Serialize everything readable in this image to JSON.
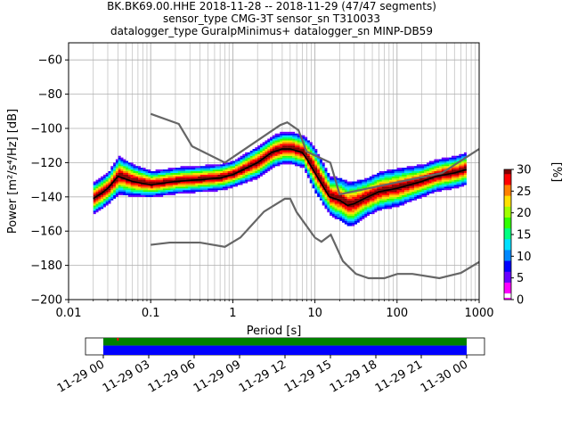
{
  "title": {
    "line1": "BK.BK69.00.HHE   2018-11-28 -- 2018-11-29  (47/47 segments)",
    "line2": "sensor_type CMG-3T sensor_sn T310033",
    "line3": "datalogger_type GuralpMinimus+ datalogger_sn MINP-DB59"
  },
  "chart_data": {
    "type": "heatmap",
    "xlabel": "Period [s]",
    "ylabel": "Power [m²/s⁴/Hz] [dB]",
    "xscale": "log",
    "xlim": [
      0.01,
      1000
    ],
    "ylim": [
      -200,
      -50
    ],
    "x_ticks": [
      0.01,
      0.1,
      1,
      10,
      100,
      1000
    ],
    "x_tick_labels": [
      "0.01",
      "0.1",
      "1",
      "10",
      "100",
      "1000"
    ],
    "y_ticks": [
      -60,
      -80,
      -100,
      -120,
      -140,
      -160,
      -180,
      -200
    ],
    "y_tick_labels": [
      "−60",
      "−80",
      "−100",
      "−120",
      "−140",
      "−160",
      "−180",
      "−200"
    ],
    "grid": true,
    "colorbar": {
      "label": "[%]",
      "range": [
        0,
        30
      ],
      "ticks": [
        0,
        5,
        10,
        15,
        20,
        25,
        30
      ],
      "colormap": [
        "#ffffff",
        "#ff00ff",
        "#6a00ff",
        "#0000ff",
        "#0088ff",
        "#00e0ff",
        "#00ff80",
        "#30ff00",
        "#a0ff00",
        "#ffe000",
        "#ff8000",
        "#ff0000",
        "#800000"
      ]
    },
    "noise_models": {
      "color": "#666666",
      "high": {
        "period": [
          0.1,
          0.22,
          0.32,
          0.8,
          3.8,
          4.6,
          6.3,
          7.9,
          15.4,
          20,
          354.8,
          1000
        ],
        "db": [
          -91.5,
          -97.4,
          -110.5,
          -120,
          -98,
          -96.5,
          -101,
          -113.5,
          -120,
          -138.5,
          -126,
          -112
        ]
      },
      "low": {
        "period": [
          0.1,
          0.17,
          0.4,
          0.8,
          1.24,
          2.4,
          4.3,
          5,
          6,
          10,
          12,
          15.6,
          21.9,
          31.6,
          45,
          70,
          101,
          154,
          328,
          600,
          1000
        ],
        "db": [
          -168,
          -166.7,
          -166.7,
          -169.2,
          -163.7,
          -148.6,
          -141.1,
          -141.1,
          -149,
          -163.8,
          -166.2,
          -162.1,
          -177.5,
          -185,
          -187.5,
          -187.5,
          -185,
          -185,
          -187.5,
          -184.4,
          -178
        ]
      }
    },
    "median_curve": {
      "color": "#000000",
      "period": [
        0.02,
        0.025,
        0.03,
        0.04,
        0.06,
        0.1,
        0.2,
        0.4,
        0.7,
        1,
        2,
        3,
        4,
        5,
        7,
        8,
        10,
        15,
        20,
        25,
        30,
        40,
        60,
        100,
        200,
        300,
        500,
        700
      ],
      "db": [
        -141,
        -138,
        -135,
        -128,
        -131,
        -133,
        -131,
        -130,
        -129,
        -127,
        -120,
        -114,
        -112,
        -112,
        -114,
        -118,
        -126,
        -140,
        -142,
        -145,
        -144,
        -141,
        -137,
        -135,
        -131,
        -128,
        -126,
        -124
      ]
    },
    "density_spread_db": [
      5,
      5,
      5,
      6,
      5,
      4,
      4,
      4,
      4,
      4,
      5,
      5,
      5,
      5,
      5,
      6,
      7,
      6,
      7,
      7,
      7,
      6,
      6,
      6,
      5,
      5,
      5,
      5
    ],
    "timeline": {
      "tick_labels": [
        "11-29 00",
        "11-29 03",
        "11-29 06",
        "11-29 09",
        "11-29 12",
        "11-29 15",
        "11-29 18",
        "11-29 21",
        "11-30 00"
      ],
      "coverage_start_hour": 0,
      "coverage_end_hour": 24,
      "data_color": "#0000ff",
      "gap_color": "#008000",
      "marker_color": "#ff0000"
    }
  }
}
